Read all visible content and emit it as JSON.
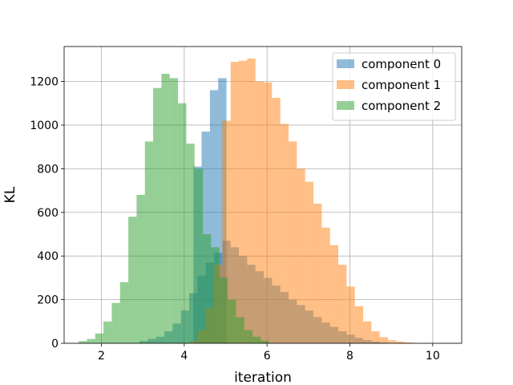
{
  "chart_data": {
    "type": "histogram",
    "xlabel": "iteration",
    "ylabel": "KL",
    "xlim": [
      1.1,
      10.7
    ],
    "ylim": [
      0,
      1360
    ],
    "xticks": [
      2,
      4,
      6,
      8,
      10
    ],
    "yticks": [
      0,
      200,
      400,
      600,
      800,
      1000,
      1200
    ],
    "grid": true,
    "legend_position": "top-right",
    "opacity": 0.5,
    "series": [
      {
        "name": "component 0",
        "color": "#1f77b4",
        "bins": [
          {
            "x0": 2.92,
            "x1": 3.12,
            "count": 10
          },
          {
            "x0": 3.12,
            "x1": 3.32,
            "count": 20
          },
          {
            "x0": 3.32,
            "x1": 3.52,
            "count": 30
          },
          {
            "x0": 3.52,
            "x1": 3.72,
            "count": 55
          },
          {
            "x0": 3.72,
            "x1": 3.92,
            "count": 90
          },
          {
            "x0": 3.92,
            "x1": 4.12,
            "count": 150
          },
          {
            "x0": 4.12,
            "x1": 4.32,
            "count": 230
          },
          {
            "x0": 4.32,
            "x1": 4.52,
            "count": 310
          },
          {
            "x0": 4.52,
            "x1": 4.72,
            "count": 370
          },
          {
            "x0": 4.72,
            "x1": 4.92,
            "count": 415
          },
          {
            "x0": 4.92,
            "x1": 5.12,
            "count": 470
          },
          {
            "x0": 5.12,
            "x1": 5.32,
            "count": 440
          },
          {
            "x0": 5.32,
            "x1": 5.52,
            "count": 400
          },
          {
            "x0": 5.52,
            "x1": 5.72,
            "count": 360
          },
          {
            "x0": 5.72,
            "x1": 5.92,
            "count": 330
          },
          {
            "x0": 5.92,
            "x1": 6.12,
            "count": 300
          },
          {
            "x0": 6.12,
            "x1": 6.32,
            "count": 265
          },
          {
            "x0": 6.32,
            "x1": 6.52,
            "count": 235
          },
          {
            "x0": 6.52,
            "x1": 6.72,
            "count": 200
          },
          {
            "x0": 6.72,
            "x1": 6.92,
            "count": 175
          },
          {
            "x0": 6.92,
            "x1": 7.12,
            "count": 150
          },
          {
            "x0": 7.12,
            "x1": 7.32,
            "count": 120
          },
          {
            "x0": 7.32,
            "x1": 7.52,
            "count": 95
          },
          {
            "x0": 7.52,
            "x1": 7.72,
            "count": 75
          },
          {
            "x0": 7.72,
            "x1": 7.92,
            "count": 55
          },
          {
            "x0": 7.92,
            "x1": 8.12,
            "count": 40
          },
          {
            "x0": 8.12,
            "x1": 8.32,
            "count": 25
          },
          {
            "x0": 8.32,
            "x1": 8.52,
            "count": 15
          },
          {
            "x0": 8.52,
            "x1": 8.72,
            "count": 8
          },
          {
            "x0": 8.72,
            "x1": 8.92,
            "count": 4
          }
        ],
        "overlay_bins": [
          {
            "x0": 4.22,
            "x1": 4.42,
            "count": 810
          },
          {
            "x0": 4.42,
            "x1": 4.62,
            "count": 970
          },
          {
            "x0": 4.62,
            "x1": 4.82,
            "count": 1160
          },
          {
            "x0": 4.82,
            "x1": 5.02,
            "count": 1215
          }
        ]
      },
      {
        "name": "component 1",
        "color": "#ff7f0e",
        "bins": [
          {
            "x0": 1.35,
            "x1": 1.55,
            "count": 2
          },
          {
            "x0": 4.12,
            "x1": 4.32,
            "count": 10
          },
          {
            "x0": 4.32,
            "x1": 4.52,
            "count": 60
          },
          {
            "x0": 4.52,
            "x1": 4.72,
            "count": 160
          },
          {
            "x0": 4.72,
            "x1": 4.92,
            "count": 360
          },
          {
            "x0": 4.92,
            "x1": 5.12,
            "count": 1020
          },
          {
            "x0": 5.12,
            "x1": 5.32,
            "count": 1290
          },
          {
            "x0": 5.32,
            "x1": 5.52,
            "count": 1295
          },
          {
            "x0": 5.52,
            "x1": 5.72,
            "count": 1305
          },
          {
            "x0": 5.72,
            "x1": 5.92,
            "count": 1200
          },
          {
            "x0": 5.92,
            "x1": 6.12,
            "count": 1195
          },
          {
            "x0": 6.12,
            "x1": 6.32,
            "count": 1125
          },
          {
            "x0": 6.32,
            "x1": 6.52,
            "count": 1005
          },
          {
            "x0": 6.52,
            "x1": 6.72,
            "count": 925
          },
          {
            "x0": 6.72,
            "x1": 6.92,
            "count": 800
          },
          {
            "x0": 6.92,
            "x1": 7.12,
            "count": 740
          },
          {
            "x0": 7.12,
            "x1": 7.32,
            "count": 640
          },
          {
            "x0": 7.32,
            "x1": 7.52,
            "count": 530
          },
          {
            "x0": 7.52,
            "x1": 7.72,
            "count": 450
          },
          {
            "x0": 7.72,
            "x1": 7.92,
            "count": 360
          },
          {
            "x0": 7.92,
            "x1": 8.12,
            "count": 260
          },
          {
            "x0": 8.12,
            "x1": 8.32,
            "count": 170
          },
          {
            "x0": 8.32,
            "x1": 8.52,
            "count": 100
          },
          {
            "x0": 8.52,
            "x1": 8.72,
            "count": 55
          },
          {
            "x0": 8.72,
            "x1": 8.92,
            "count": 28
          },
          {
            "x0": 8.92,
            "x1": 9.12,
            "count": 14
          },
          {
            "x0": 9.12,
            "x1": 9.32,
            "count": 8
          },
          {
            "x0": 9.32,
            "x1": 9.52,
            "count": 4
          },
          {
            "x0": 10.2,
            "x1": 10.4,
            "count": 2
          }
        ]
      },
      {
        "name": "component 2",
        "color": "#2ca02c",
        "bins": [
          {
            "x0": 1.45,
            "x1": 1.65,
            "count": 10
          },
          {
            "x0": 1.65,
            "x1": 1.85,
            "count": 20
          },
          {
            "x0": 1.85,
            "x1": 2.05,
            "count": 45
          },
          {
            "x0": 2.05,
            "x1": 2.25,
            "count": 100
          },
          {
            "x0": 2.25,
            "x1": 2.45,
            "count": 185
          },
          {
            "x0": 2.45,
            "x1": 2.65,
            "count": 280
          },
          {
            "x0": 2.65,
            "x1": 2.85,
            "count": 580
          },
          {
            "x0": 2.85,
            "x1": 3.05,
            "count": 680
          },
          {
            "x0": 3.05,
            "x1": 3.25,
            "count": 925
          },
          {
            "x0": 3.25,
            "x1": 3.45,
            "count": 1170
          },
          {
            "x0": 3.45,
            "x1": 3.65,
            "count": 1235
          },
          {
            "x0": 3.65,
            "x1": 3.85,
            "count": 1215
          },
          {
            "x0": 3.85,
            "x1": 4.05,
            "count": 1100
          },
          {
            "x0": 4.05,
            "x1": 4.25,
            "count": 915
          },
          {
            "x0": 4.25,
            "x1": 4.45,
            "count": 800
          },
          {
            "x0": 4.45,
            "x1": 4.65,
            "count": 500
          },
          {
            "x0": 4.65,
            "x1": 4.85,
            "count": 440
          },
          {
            "x0": 4.85,
            "x1": 5.05,
            "count": 300
          },
          {
            "x0": 5.05,
            "x1": 5.25,
            "count": 200
          },
          {
            "x0": 5.25,
            "x1": 5.45,
            "count": 120
          },
          {
            "x0": 5.45,
            "x1": 5.65,
            "count": 60
          },
          {
            "x0": 5.65,
            "x1": 5.85,
            "count": 30
          },
          {
            "x0": 5.85,
            "x1": 6.05,
            "count": 12
          }
        ]
      }
    ]
  }
}
